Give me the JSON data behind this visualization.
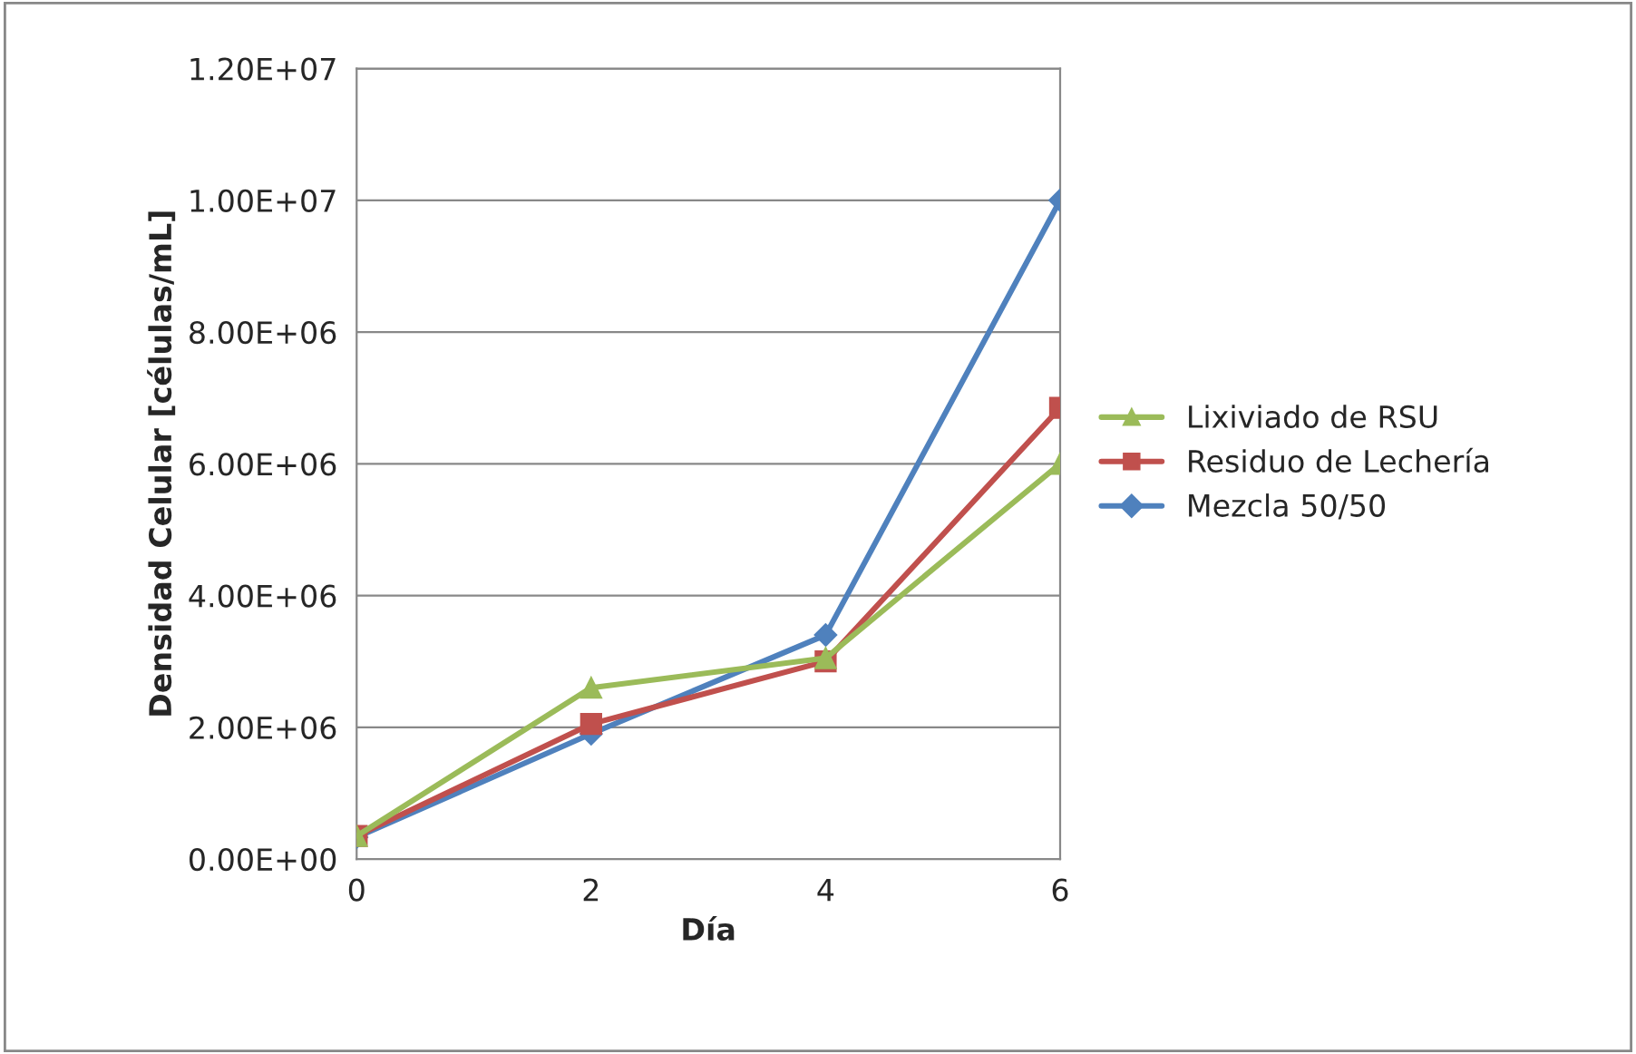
{
  "chart_data": {
    "type": "line",
    "xlabel": "Día",
    "ylabel": "Densidad Celular [células/mL]",
    "x": [
      0,
      2,
      4,
      6
    ],
    "series": [
      {
        "name": "Lixiviado de RSU",
        "color": "#9bbb59",
        "marker": "triangle",
        "values": [
          350000,
          2600000,
          3050000,
          6000000
        ]
      },
      {
        "name": "Residuo de Lechería",
        "color": "#c0504d",
        "marker": "square",
        "values": [
          350000,
          2050000,
          3000000,
          6850000
        ]
      },
      {
        "name": "Mezcla 50/50",
        "color": "#4f81bd",
        "marker": "diamond",
        "values": [
          330000,
          1900000,
          3400000,
          10000000
        ]
      }
    ],
    "xlim": [
      0,
      6
    ],
    "xticks": [
      0,
      2,
      4,
      6
    ],
    "ylim": [
      0,
      12000000
    ],
    "yticks": [
      {
        "value": 0,
        "label": "0.00E+00"
      },
      {
        "value": 2000000,
        "label": "2.00E+06"
      },
      {
        "value": 4000000,
        "label": "4.00E+06"
      },
      {
        "value": 6000000,
        "label": "6.00E+06"
      },
      {
        "value": 8000000,
        "label": "8.00E+06"
      },
      {
        "value": 10000000,
        "label": "1.00E+07"
      },
      {
        "value": 12000000,
        "label": "1.20E+07"
      }
    ],
    "grid": "y",
    "legend": "right",
    "line_style": "solid"
  }
}
